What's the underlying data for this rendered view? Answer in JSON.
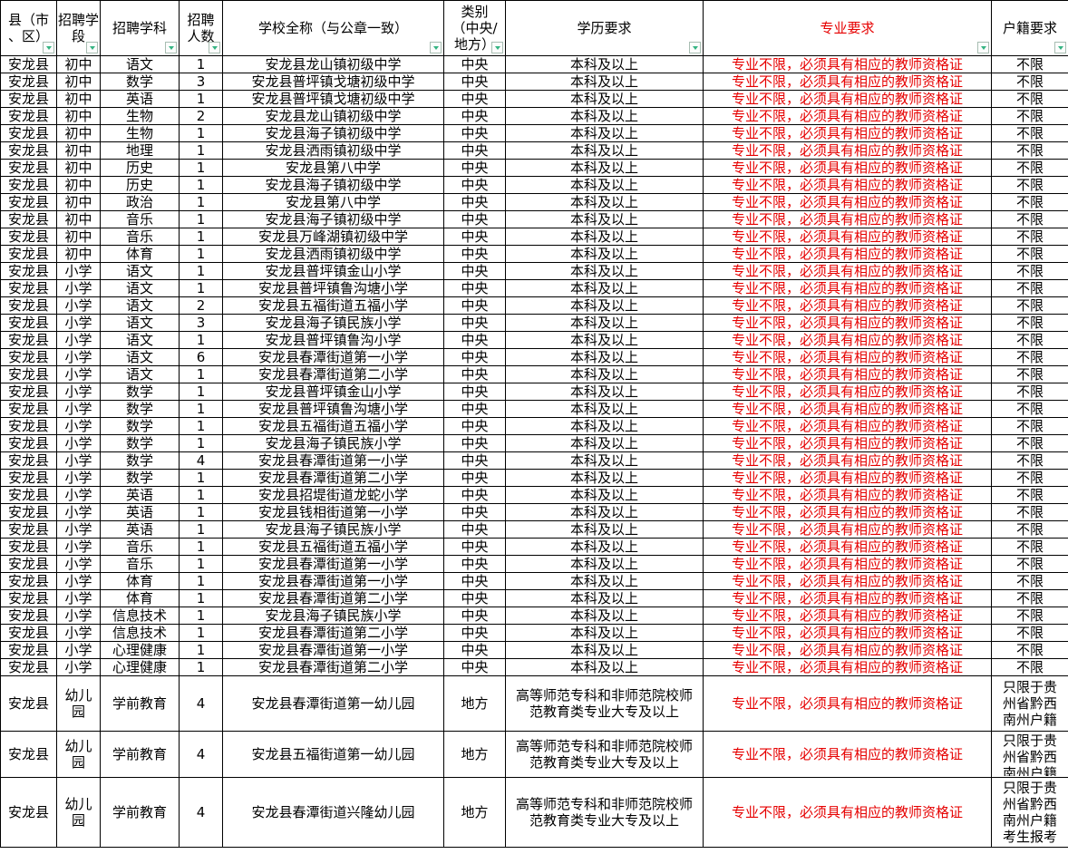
{
  "colors": {
    "major_text": "#e60000",
    "grid": "#000000",
    "filter_arrow": "#35b482",
    "background": "#ffffff"
  },
  "table": {
    "header": [
      {
        "label": "县（市\n、区）",
        "red": false
      },
      {
        "label": "招聘学\n段",
        "red": false
      },
      {
        "label": "招聘学科",
        "red": false
      },
      {
        "label": "招聘\n人数",
        "red": false
      },
      {
        "label": "学校全称（与公章一致）",
        "red": false
      },
      {
        "label": "类别\n（中央/\n地方）",
        "red": false
      },
      {
        "label": "学历要求",
        "red": false
      },
      {
        "label": "专业要求",
        "red": true
      },
      {
        "label": "户籍要求",
        "red": false
      }
    ],
    "column_keys": [
      "county",
      "stage",
      "subject",
      "num",
      "school",
      "category",
      "edu",
      "major",
      "residence"
    ],
    "rows": [
      [
        "安龙县",
        "初中",
        "语文",
        "1",
        "安龙县龙山镇初级中学",
        "中央",
        "本科及以上",
        "专业不限，必须具有相应的教师资格证",
        "不限"
      ],
      [
        "安龙县",
        "初中",
        "数学",
        "3",
        "安龙县普坪镇戈塘初级中学",
        "中央",
        "本科及以上",
        "专业不限，必须具有相应的教师资格证",
        "不限"
      ],
      [
        "安龙县",
        "初中",
        "英语",
        "1",
        "安龙县普坪镇戈塘初级中学",
        "中央",
        "本科及以上",
        "专业不限，必须具有相应的教师资格证",
        "不限"
      ],
      [
        "安龙县",
        "初中",
        "生物",
        "2",
        "安龙县龙山镇初级中学",
        "中央",
        "本科及以上",
        "专业不限，必须具有相应的教师资格证",
        "不限"
      ],
      [
        "安龙县",
        "初中",
        "生物",
        "1",
        "安龙县海子镇初级中学",
        "中央",
        "本科及以上",
        "专业不限，必须具有相应的教师资格证",
        "不限"
      ],
      [
        "安龙县",
        "初中",
        "地理",
        "1",
        "安龙县洒雨镇初级中学",
        "中央",
        "本科及以上",
        "专业不限，必须具有相应的教师资格证",
        "不限"
      ],
      [
        "安龙县",
        "初中",
        "历史",
        "1",
        "安龙县第八中学",
        "中央",
        "本科及以上",
        "专业不限，必须具有相应的教师资格证",
        "不限"
      ],
      [
        "安龙县",
        "初中",
        "历史",
        "1",
        "安龙县海子镇初级中学",
        "中央",
        "本科及以上",
        "专业不限，必须具有相应的教师资格证",
        "不限"
      ],
      [
        "安龙县",
        "初中",
        "政治",
        "1",
        "安龙县第八中学",
        "中央",
        "本科及以上",
        "专业不限，必须具有相应的教师资格证",
        "不限"
      ],
      [
        "安龙县",
        "初中",
        "音乐",
        "1",
        "安龙县海子镇初级中学",
        "中央",
        "本科及以上",
        "专业不限，必须具有相应的教师资格证",
        "不限"
      ],
      [
        "安龙县",
        "初中",
        "音乐",
        "1",
        "安龙县万峰湖镇初级中学",
        "中央",
        "本科及以上",
        "专业不限，必须具有相应的教师资格证",
        "不限"
      ],
      [
        "安龙县",
        "初中",
        "体育",
        "1",
        "安龙县洒雨镇初级中学",
        "中央",
        "本科及以上",
        "专业不限，必须具有相应的教师资格证",
        "不限"
      ],
      [
        "安龙县",
        "小学",
        "语文",
        "1",
        "安龙县普坪镇金山小学",
        "中央",
        "本科及以上",
        "专业不限，必须具有相应的教师资格证",
        "不限"
      ],
      [
        "安龙县",
        "小学",
        "语文",
        "1",
        "安龙县普坪镇鲁沟塘小学",
        "中央",
        "本科及以上",
        "专业不限，必须具有相应的教师资格证",
        "不限"
      ],
      [
        "安龙县",
        "小学",
        "语文",
        "2",
        "安龙县五福街道五福小学",
        "中央",
        "本科及以上",
        "专业不限，必须具有相应的教师资格证",
        "不限"
      ],
      [
        "安龙县",
        "小学",
        "语文",
        "3",
        "安龙县海子镇民族小学",
        "中央",
        "本科及以上",
        "专业不限，必须具有相应的教师资格证",
        "不限"
      ],
      [
        "安龙县",
        "小学",
        "语文",
        "1",
        "安龙县普坪镇鲁沟小学",
        "中央",
        "本科及以上",
        "专业不限，必须具有相应的教师资格证",
        "不限"
      ],
      [
        "安龙县",
        "小学",
        "语文",
        "6",
        "安龙县春潭街道第一小学",
        "中央",
        "本科及以上",
        "专业不限，必须具有相应的教师资格证",
        "不限"
      ],
      [
        "安龙县",
        "小学",
        "语文",
        "1",
        "安龙县春潭街道第二小学",
        "中央",
        "本科及以上",
        "专业不限，必须具有相应的教师资格证",
        "不限"
      ],
      [
        "安龙县",
        "小学",
        "数学",
        "1",
        "安龙县普坪镇金山小学",
        "中央",
        "本科及以上",
        "专业不限，必须具有相应的教师资格证",
        "不限"
      ],
      [
        "安龙县",
        "小学",
        "数学",
        "1",
        "安龙县普坪镇鲁沟塘小学",
        "中央",
        "本科及以上",
        "专业不限，必须具有相应的教师资格证",
        "不限"
      ],
      [
        "安龙县",
        "小学",
        "数学",
        "1",
        "安龙县五福街道五福小学",
        "中央",
        "本科及以上",
        "专业不限，必须具有相应的教师资格证",
        "不限"
      ],
      [
        "安龙县",
        "小学",
        "数学",
        "1",
        "安龙县海子镇民族小学",
        "中央",
        "本科及以上",
        "专业不限，必须具有相应的教师资格证",
        "不限"
      ],
      [
        "安龙县",
        "小学",
        "数学",
        "4",
        "安龙县春潭街道第一小学",
        "中央",
        "本科及以上",
        "专业不限，必须具有相应的教师资格证",
        "不限"
      ],
      [
        "安龙县",
        "小学",
        "数学",
        "1",
        "安龙县春潭街道第二小学",
        "中央",
        "本科及以上",
        "专业不限，必须具有相应的教师资格证",
        "不限"
      ],
      [
        "安龙县",
        "小学",
        "英语",
        "1",
        "安龙县招堤街道龙蛇小学",
        "中央",
        "本科及以上",
        "专业不限，必须具有相应的教师资格证",
        "不限"
      ],
      [
        "安龙县",
        "小学",
        "英语",
        "1",
        "安龙县钱相街道第一小学",
        "中央",
        "本科及以上",
        "专业不限，必须具有相应的教师资格证",
        "不限"
      ],
      [
        "安龙县",
        "小学",
        "英语",
        "1",
        "安龙县海子镇民族小学",
        "中央",
        "本科及以上",
        "专业不限，必须具有相应的教师资格证",
        "不限"
      ],
      [
        "安龙县",
        "小学",
        "音乐",
        "1",
        "安龙县五福街道五福小学",
        "中央",
        "本科及以上",
        "专业不限，必须具有相应的教师资格证",
        "不限"
      ],
      [
        "安龙县",
        "小学",
        "音乐",
        "1",
        "安龙县春潭街道第一小学",
        "中央",
        "本科及以上",
        "专业不限，必须具有相应的教师资格证",
        "不限"
      ],
      [
        "安龙县",
        "小学",
        "体育",
        "1",
        "安龙县春潭街道第一小学",
        "中央",
        "本科及以上",
        "专业不限，必须具有相应的教师资格证",
        "不限"
      ],
      [
        "安龙县",
        "小学",
        "体育",
        "1",
        "安龙县春潭街道第二小学",
        "中央",
        "本科及以上",
        "专业不限，必须具有相应的教师资格证",
        "不限"
      ],
      [
        "安龙县",
        "小学",
        "信息技术",
        "1",
        "安龙县海子镇民族小学",
        "中央",
        "本科及以上",
        "专业不限，必须具有相应的教师资格证",
        "不限"
      ],
      [
        "安龙县",
        "小学",
        "信息技术",
        "1",
        "安龙县春潭街道第二小学",
        "中央",
        "本科及以上",
        "专业不限，必须具有相应的教师资格证",
        "不限"
      ],
      [
        "安龙县",
        "小学",
        "心理健康",
        "1",
        "安龙县春潭街道第一小学",
        "中央",
        "本科及以上",
        "专业不限，必须具有相应的教师资格证",
        "不限"
      ],
      [
        "安龙县",
        "小学",
        "心理健康",
        "1",
        "安龙县春潭街道第二小学",
        "中央",
        "本科及以上",
        "专业不限，必须具有相应的教师资格证",
        "不限"
      ],
      [
        "安龙县",
        "幼儿园",
        "学前教育",
        "4",
        "安龙县春潭街道第一幼儿园",
        "地方",
        "高等师范专科和非师范院校师范教育类专业大专及以上",
        "专业不限，必须具有相应的教师资格证",
        "只限于贵州省黔西南州户籍"
      ],
      [
        "安龙县",
        "幼儿园",
        "学前教育",
        "4",
        "安龙县五福街道第一幼儿园",
        "地方",
        "高等师范专科和非师范院校师范教育类专业大专及以上",
        "专业不限，必须具有相应的教师资格证",
        "只限于贵州省黔西南州户籍"
      ],
      [
        "安龙县",
        "幼儿园",
        "学前教育",
        "4",
        "安龙县春潭街道兴隆幼儿园",
        "地方",
        "高等师范专科和非师范院校师范教育类专业大专及以上",
        "专业不限，必须具有相应的教师资格证",
        "只限于贵州省黔西南州户籍考生报考"
      ]
    ]
  }
}
